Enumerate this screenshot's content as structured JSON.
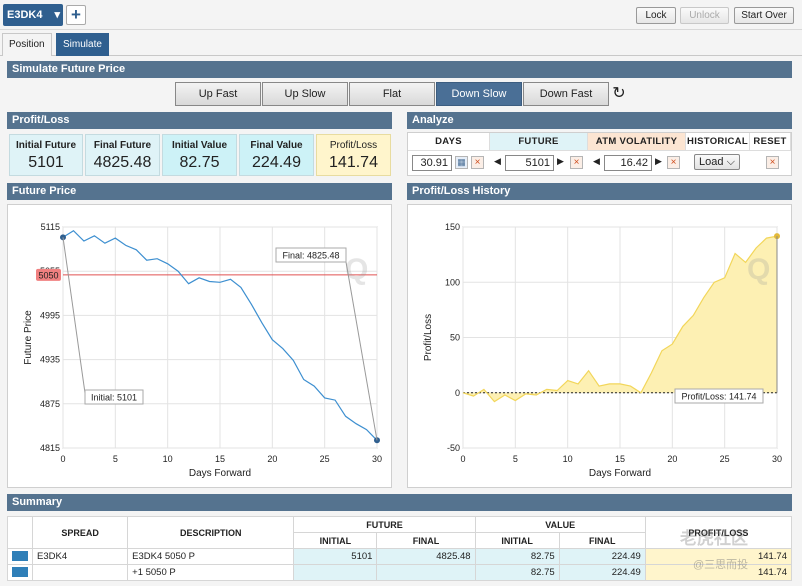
{
  "header": {
    "symbol": "E3DK4",
    "buttons": {
      "lock": "Lock",
      "unlock": "Unlock",
      "start_over": "Start Over"
    }
  },
  "tabs": [
    {
      "label": "Position"
    },
    {
      "label": "Simulate"
    }
  ],
  "simulate": {
    "title": "Simulate Future Price",
    "scenarios": [
      "Up Fast",
      "Up Slow",
      "Flat",
      "Down Slow",
      "Down Fast"
    ],
    "active_scenario": "Down Slow"
  },
  "profit_loss": {
    "title": "Profit/Loss",
    "cells": [
      {
        "label": "Initial Future",
        "value": "5101"
      },
      {
        "label": "Final Future",
        "value": "4825.48"
      },
      {
        "label": "Initial Value",
        "value": "82.75"
      },
      {
        "label": "Final Value",
        "value": "224.49"
      },
      {
        "label": "Profit/Loss",
        "value": "141.74"
      }
    ]
  },
  "analyze": {
    "title": "Analyze",
    "headers": {
      "days": "DAYS",
      "future": "FUTURE",
      "atm_vol": "ATM VOLATILITY",
      "historical": "HISTORICAL",
      "reset": "RESET"
    },
    "days_value": "30.91",
    "future_value": "5101",
    "vol_value": "16.42",
    "load_label": "Load"
  },
  "chart_data": [
    {
      "type": "line",
      "title": "Future Price",
      "xlabel": "Days Forward",
      "ylabel": "Future Price",
      "xlim": [
        0,
        30
      ],
      "ylim": [
        4815,
        5115
      ],
      "xticks": [
        "0",
        "5",
        "10",
        "15",
        "20",
        "25",
        "30"
      ],
      "yticks": [
        "5115",
        "5055",
        "4995",
        "4935",
        "4875",
        "4815"
      ],
      "reference_line": {
        "value": 5050,
        "label": "5050",
        "color": "#e05050"
      },
      "annotations": [
        {
          "text": "Initial: 5101",
          "x": 0,
          "y": 5101
        },
        {
          "text": "Final: 4825.48",
          "x": 30,
          "y": 4825.48
        }
      ],
      "series": [
        {
          "color": "#3d8fd0",
          "x": [
            0,
            1,
            2,
            3,
            4,
            5,
            6,
            7,
            8,
            9,
            10,
            11,
            12,
            13,
            14,
            15,
            16,
            17,
            18,
            19,
            20,
            21,
            22,
            23,
            24,
            25,
            26,
            27,
            28,
            29,
            30
          ],
          "y": [
            5101,
            5110,
            5096,
            5103,
            5093,
            5100,
            5090,
            5084,
            5070,
            5072,
            5065,
            5055,
            5038,
            5046,
            5041,
            5040,
            5044,
            5033,
            5010,
            4985,
            4962,
            4950,
            4934,
            4908,
            4899,
            4883,
            4880,
            4858,
            4848,
            4840,
            4825.48
          ]
        }
      ]
    },
    {
      "type": "area",
      "title": "Profit/Loss History",
      "xlabel": "Days Forward",
      "ylabel": "Profit/Loss",
      "xlim": [
        0,
        30
      ],
      "ylim": [
        -50,
        150
      ],
      "xticks": [
        "0",
        "5",
        "10",
        "15",
        "20",
        "25",
        "30"
      ],
      "yticks": [
        "150",
        "100",
        "50",
        "0",
        "-50"
      ],
      "annotations": [
        {
          "text": "Profit/Loss: 141.74",
          "x": 30,
          "y": 141.74
        }
      ],
      "series": [
        {
          "color": "#f2d65a",
          "x": [
            0,
            1,
            2,
            3,
            4,
            5,
            6,
            7,
            8,
            9,
            10,
            11,
            12,
            13,
            14,
            15,
            16,
            17,
            18,
            19,
            20,
            21,
            22,
            23,
            24,
            25,
            26,
            27,
            28,
            29,
            30
          ],
          "y": [
            0,
            -3,
            3,
            -8,
            -2,
            -7,
            -1,
            -2,
            3,
            2,
            11,
            8,
            20,
            6,
            8,
            8,
            6,
            0,
            18,
            38,
            44,
            60,
            70,
            86,
            100,
            104,
            126,
            118,
            131,
            140,
            141.74
          ]
        }
      ]
    }
  ],
  "future_price_title": "Future Price",
  "pl_history_title": "Profit/Loss History",
  "summary": {
    "title": "Summary",
    "headers": {
      "spread": "SPREAD",
      "description": "DESCRIPTION",
      "future": "FUTURE",
      "value": "VALUE",
      "profit_loss": "PROFIT/LOSS",
      "initial": "INITIAL",
      "final": "FINAL"
    },
    "rows": [
      {
        "spread": "E3DK4",
        "description": "E3DK4 5050 P",
        "future_initial": "5101",
        "future_final": "4825.48",
        "value_initial": "82.75",
        "value_final": "224.49",
        "pl": "141.74"
      },
      {
        "spread": "",
        "description": "+1 5050 P",
        "future_initial": "",
        "future_final": "",
        "value_initial": "82.75",
        "value_final": "224.49",
        "pl": "141.74"
      }
    ]
  },
  "watermark": {
    "main": "老虎社区",
    "sub": "@三思而投"
  }
}
